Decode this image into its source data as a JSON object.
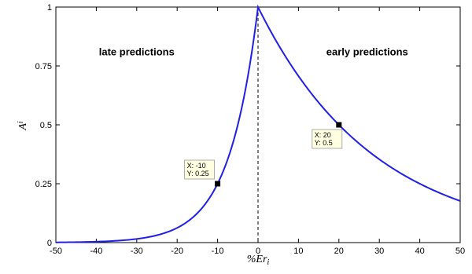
{
  "chart_data": {
    "type": "line",
    "xlim": [
      -50,
      50
    ],
    "ylim": [
      0,
      1
    ],
    "xticks": [
      -50,
      -40,
      -30,
      -20,
      -10,
      0,
      10,
      20,
      30,
      40,
      50
    ],
    "yticks": [
      0,
      0.25,
      0.5,
      0.75,
      1
    ],
    "ytick_labels": [
      "0",
      "0.25",
      "0.5",
      "0.75",
      "1"
    ],
    "xlabel": "%Er",
    "xlabel_sub": "i",
    "ylabel": "A",
    "ylabel_sub": "i",
    "grid": false,
    "line_color": "#1f1fe6",
    "series": [
      {
        "x": [
          -50,
          -45,
          -40,
          -35,
          -30,
          -25,
          -20,
          -15,
          -10,
          -7.5,
          -5,
          -2.5,
          0,
          2.5,
          5,
          7.5,
          10,
          15,
          20,
          25,
          30,
          35,
          40,
          45,
          50
        ],
        "y": [
          0.001,
          0.002,
          0.004,
          0.008,
          0.016,
          0.031,
          0.063,
          0.125,
          0.25,
          0.354,
          0.5,
          0.707,
          1,
          0.917,
          0.841,
          0.771,
          0.707,
          0.595,
          0.5,
          0.42,
          0.354,
          0.297,
          0.25,
          0.21,
          0.177
        ]
      }
    ],
    "reference_line": {
      "x": 0,
      "style": "dashed"
    },
    "annotations": [
      {
        "text": "late predictions",
        "x": -30,
        "y": 0.795
      },
      {
        "text": "early predictions",
        "x": 27,
        "y": 0.795
      }
    ],
    "datatips": [
      {
        "x": -10,
        "y": 0.25,
        "line1": "X: -10",
        "line2": "Y: 0.25"
      },
      {
        "x": 20,
        "y": 0.5,
        "line1": "X: 20",
        "line2": "Y: 0.5"
      }
    ]
  }
}
